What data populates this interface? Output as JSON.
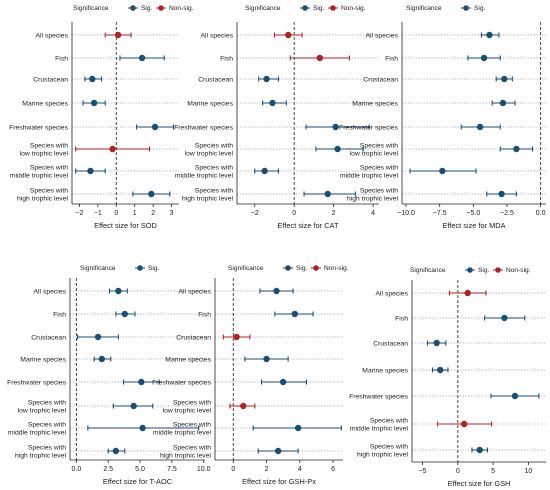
{
  "colors": {
    "sig": "#1b4f72",
    "nonsig": "#b22222",
    "grid": "#9a9a9a",
    "axis": "#222222",
    "zero_line": "#333333"
  },
  "legend": {
    "title": "Significance",
    "sig_label": "Sig.",
    "nonsig_label": "Non-sig."
  },
  "chart_data": [
    {
      "type": "forest",
      "xlabel": "Effect size for SOD",
      "xlim": [
        -2.4,
        3.4
      ],
      "xticks": [
        -2,
        -1,
        0,
        1,
        2,
        3
      ],
      "categories": [
        "All species",
        "Fish",
        "Crustacean",
        "Marine species",
        "Freshwater species",
        "Species with\nlow trophic level",
        "Species with\nmiddle trophic level",
        "Species with\nhigh trophic level"
      ],
      "est": [
        0.1,
        1.4,
        -1.3,
        -1.2,
        2.1,
        -0.2,
        -1.4,
        1.9
      ],
      "low": [
        -0.6,
        0.2,
        -1.7,
        -1.8,
        1.1,
        -2.2,
        -2.2,
        0.9
      ],
      "high": [
        0.8,
        2.6,
        -0.8,
        -0.6,
        3.1,
        1.8,
        -0.6,
        2.9
      ],
      "sig": [
        false,
        true,
        true,
        true,
        true,
        false,
        true,
        true
      ],
      "legend_shows": [
        "sig",
        "nonsig"
      ]
    },
    {
      "type": "forest",
      "xlabel": "Effect size for CAT",
      "xlim": [
        -2.9,
        4.3
      ],
      "xticks": [
        -2,
        0,
        2,
        4
      ],
      "categories": [
        "All species",
        "Fish",
        "Crustacean",
        "Marine species",
        "Freshwater species",
        "Species with\nlow trophic level",
        "Species with\nmiddle trophic level",
        "Species with\nhigh trophic level"
      ],
      "est": [
        -0.3,
        1.3,
        -1.4,
        -1.1,
        2.1,
        2.2,
        -1.5,
        1.7
      ],
      "low": [
        -1.0,
        -0.2,
        -1.8,
        -1.6,
        0.6,
        1.1,
        -2.0,
        0.5
      ],
      "high": [
        0.4,
        2.8,
        -0.8,
        -0.4,
        3.8,
        3.5,
        -0.8,
        3.1
      ],
      "sig": [
        false,
        false,
        true,
        true,
        true,
        true,
        true,
        true
      ],
      "legend_shows": [
        "sig",
        "nonsig"
      ]
    },
    {
      "type": "forest",
      "xlabel": "Effect size for MDA",
      "xlim": [
        -10.3,
        0.4
      ],
      "xticks": [
        -10.0,
        -7.5,
        -5.0,
        -2.5,
        0.0
      ],
      "xtick_labels": [
        "−10.0",
        "−7.5",
        "−5.0",
        "−2.5",
        "0.0"
      ],
      "categories": [
        "All species",
        "Fish",
        "Crustacean",
        "Marine species",
        "Freshwater species",
        "Species with\nlow trophic level",
        "Species with\nmiddle trophic level",
        "Species with\nhigh trophic level"
      ],
      "est": [
        -3.8,
        -4.2,
        -2.7,
        -2.8,
        -4.5,
        -1.8,
        -7.3,
        -2.9
      ],
      "low": [
        -4.4,
        -5.4,
        -3.3,
        -3.6,
        -5.9,
        -3.0,
        -9.7,
        -4.0
      ],
      "high": [
        -3.1,
        -3.0,
        -2.1,
        -1.9,
        -3.0,
        -0.6,
        -4.8,
        -1.8
      ],
      "sig": [
        true,
        true,
        true,
        true,
        true,
        true,
        true,
        true
      ],
      "legend_shows": [
        "sig"
      ]
    },
    {
      "type": "forest",
      "xlabel": "Effect size for T-AOC",
      "xlim": [
        -0.5,
        10.1
      ],
      "xticks": [
        0.0,
        2.5,
        5.0,
        7.5,
        10.0
      ],
      "xtick_labels": [
        "0.0",
        "2.5",
        "5.0",
        "7.5",
        "10.0"
      ],
      "categories": [
        "All species",
        "Fish",
        "Crustacean",
        "Marine species",
        "Freshwater species",
        "Species with\nlow trophic level",
        "Species with\nmiddle trophic level",
        "Species with\nhigh trophic level"
      ],
      "est": [
        3.3,
        3.8,
        1.7,
        2.0,
        5.1,
        4.5,
        5.2,
        3.1
      ],
      "low": [
        2.6,
        3.1,
        0.1,
        1.4,
        3.7,
        2.9,
        0.9,
        2.5
      ],
      "high": [
        4.0,
        4.6,
        3.3,
        2.7,
        6.5,
        6.0,
        9.6,
        3.8
      ],
      "sig": [
        true,
        true,
        true,
        true,
        true,
        true,
        true,
        true
      ],
      "legend_shows": [
        "sig"
      ]
    },
    {
      "type": "forest",
      "xlabel": "Effect size for GSH-Px",
      "xlim": [
        -1.1,
        6.6
      ],
      "xticks": [
        0,
        2,
        4,
        6
      ],
      "categories": [
        "All species",
        "Fish",
        "Crustacean",
        "Marine species",
        "Freshwater species",
        "Species with\nlow trophic level",
        "Species with\nmiddle trophic level",
        "Species with\nhigh trophic level"
      ],
      "est": [
        2.6,
        3.7,
        0.2,
        2.0,
        3.0,
        0.6,
        3.9,
        2.7
      ],
      "low": [
        1.6,
        2.5,
        -0.6,
        0.7,
        1.7,
        -0.2,
        1.2,
        1.5
      ],
      "high": [
        3.6,
        4.8,
        1.0,
        3.3,
        4.4,
        1.3,
        6.5,
        3.9
      ],
      "sig": [
        true,
        true,
        false,
        true,
        true,
        false,
        true,
        true
      ],
      "legend_shows": [
        "sig",
        "nonsig"
      ]
    },
    {
      "type": "forest",
      "xlabel": "Effect size for GSH",
      "xlim": [
        -6.5,
        12.5
      ],
      "xticks": [
        -5,
        0,
        5,
        10
      ],
      "categories": [
        "All species",
        "Fish",
        "Crustacean",
        "Marine species",
        "Freshwater species",
        "Species with\nmiddle trophic level",
        "Species with\nhigh trophic level"
      ],
      "est": [
        1.4,
        6.6,
        -3.0,
        -2.5,
        8.1,
        0.9,
        3.1
      ],
      "low": [
        -1.2,
        3.8,
        -4.3,
        -3.6,
        4.7,
        -2.9,
        2.0
      ],
      "high": [
        4.0,
        9.5,
        -1.7,
        -1.4,
        11.5,
        4.8,
        4.2
      ],
      "sig": [
        false,
        true,
        true,
        true,
        true,
        false,
        true
      ],
      "legend_shows": [
        "sig",
        "nonsig"
      ]
    }
  ]
}
